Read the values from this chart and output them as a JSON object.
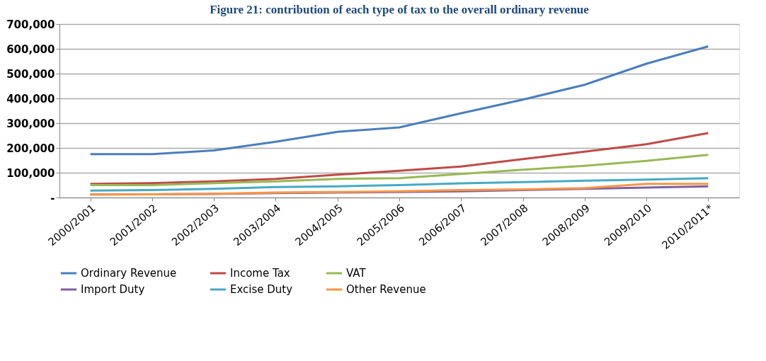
{
  "chart_data": {
    "type": "line",
    "title": "Figure 21: contribution of each type of tax to the overall ordinary revenue",
    "categories": [
      "2000/2001",
      "2001/2002",
      "2002/2003",
      "2003/2004",
      "2004/2005",
      "2005/2006",
      "2006/2007",
      "2007/2008",
      "2008/2009",
      "2009/2010",
      "2010/2011*"
    ],
    "series": [
      {
        "name": "Ordinary Revenue",
        "color": "#4a7ebb",
        "values": [
          175000,
          175000,
          190000,
          225000,
          265000,
          283000,
          340000,
          395000,
          455000,
          540000,
          610000
        ]
      },
      {
        "name": "Income Tax",
        "color": "#be4b48",
        "values": [
          55000,
          58000,
          65000,
          75000,
          92000,
          108000,
          125000,
          155000,
          185000,
          215000,
          260000
        ]
      },
      {
        "name": "VAT",
        "color": "#98b954",
        "values": [
          50000,
          50000,
          58000,
          65000,
          75000,
          78000,
          95000,
          112000,
          128000,
          148000,
          172000
        ]
      },
      {
        "name": "Import Duty",
        "color": "#7d60a0",
        "values": [
          12000,
          13000,
          14000,
          18000,
          20000,
          22000,
          25000,
          30000,
          35000,
          40000,
          45000
        ]
      },
      {
        "name": "Excise Duty",
        "color": "#46aac5",
        "values": [
          28000,
          30000,
          35000,
          42000,
          45000,
          50000,
          57000,
          62000,
          68000,
          72000,
          78000
        ]
      },
      {
        "name": "Other Revenue",
        "color": "#f79646",
        "values": [
          12000,
          13000,
          15000,
          20000,
          22000,
          25000,
          30000,
          33000,
          38000,
          55000,
          55000
        ]
      }
    ],
    "ylim": [
      0,
      700000
    ],
    "yticks": [
      {
        "value": 0,
        "label": "-"
      },
      {
        "value": 100000,
        "label": "100,000"
      },
      {
        "value": 200000,
        "label": "200,000"
      },
      {
        "value": 300000,
        "label": "300,000"
      },
      {
        "value": 400000,
        "label": "400,000"
      },
      {
        "value": 500000,
        "label": "500,000"
      },
      {
        "value": 600000,
        "label": "600,000"
      },
      {
        "value": 700000,
        "label": "700,000"
      }
    ],
    "grid": "y",
    "legend": "bottom",
    "marker": "none",
    "line_style": "solid"
  }
}
